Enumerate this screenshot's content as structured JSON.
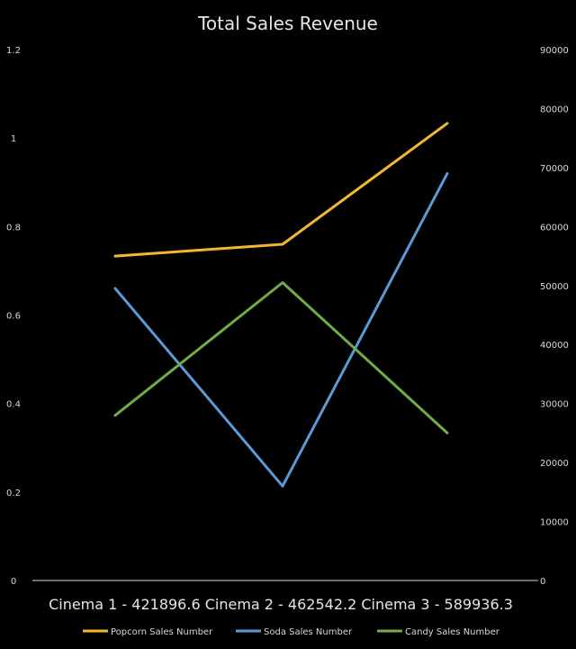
{
  "chart_data": {
    "type": "line",
    "title": "Total Sales Revenue",
    "categories": [
      "Cinema 1 - 421896.6",
      "Cinema 2 - 462542.2",
      "Cinema 3 - 589936.3"
    ],
    "primary_y": {
      "ticks": [
        "0",
        "0.2",
        "0.4",
        "0.6",
        "0.8",
        "1",
        "1.2"
      ],
      "ylim": [
        0,
        1.2
      ]
    },
    "secondary_y": {
      "ticks": [
        "0",
        "10000",
        "20000",
        "30000",
        "40000",
        "50000",
        "60000",
        "70000",
        "80000",
        "90000"
      ],
      "ylim": [
        0,
        90000
      ]
    },
    "series": [
      {
        "name": "Popcorn Sales Number",
        "color": "#F4B830",
        "axis": "secondary",
        "values": [
          55000,
          57000,
          77500
        ]
      },
      {
        "name": "Soda Sales Number",
        "color": "#5B9BD5",
        "axis": "secondary",
        "values": [
          49500,
          16000,
          69000
        ]
      },
      {
        "name": "Candy Sales Number",
        "color": "#70AD47",
        "axis": "secondary",
        "values": [
          28000,
          50500,
          25000
        ]
      }
    ],
    "legend_position": "bottom",
    "grid": false
  }
}
